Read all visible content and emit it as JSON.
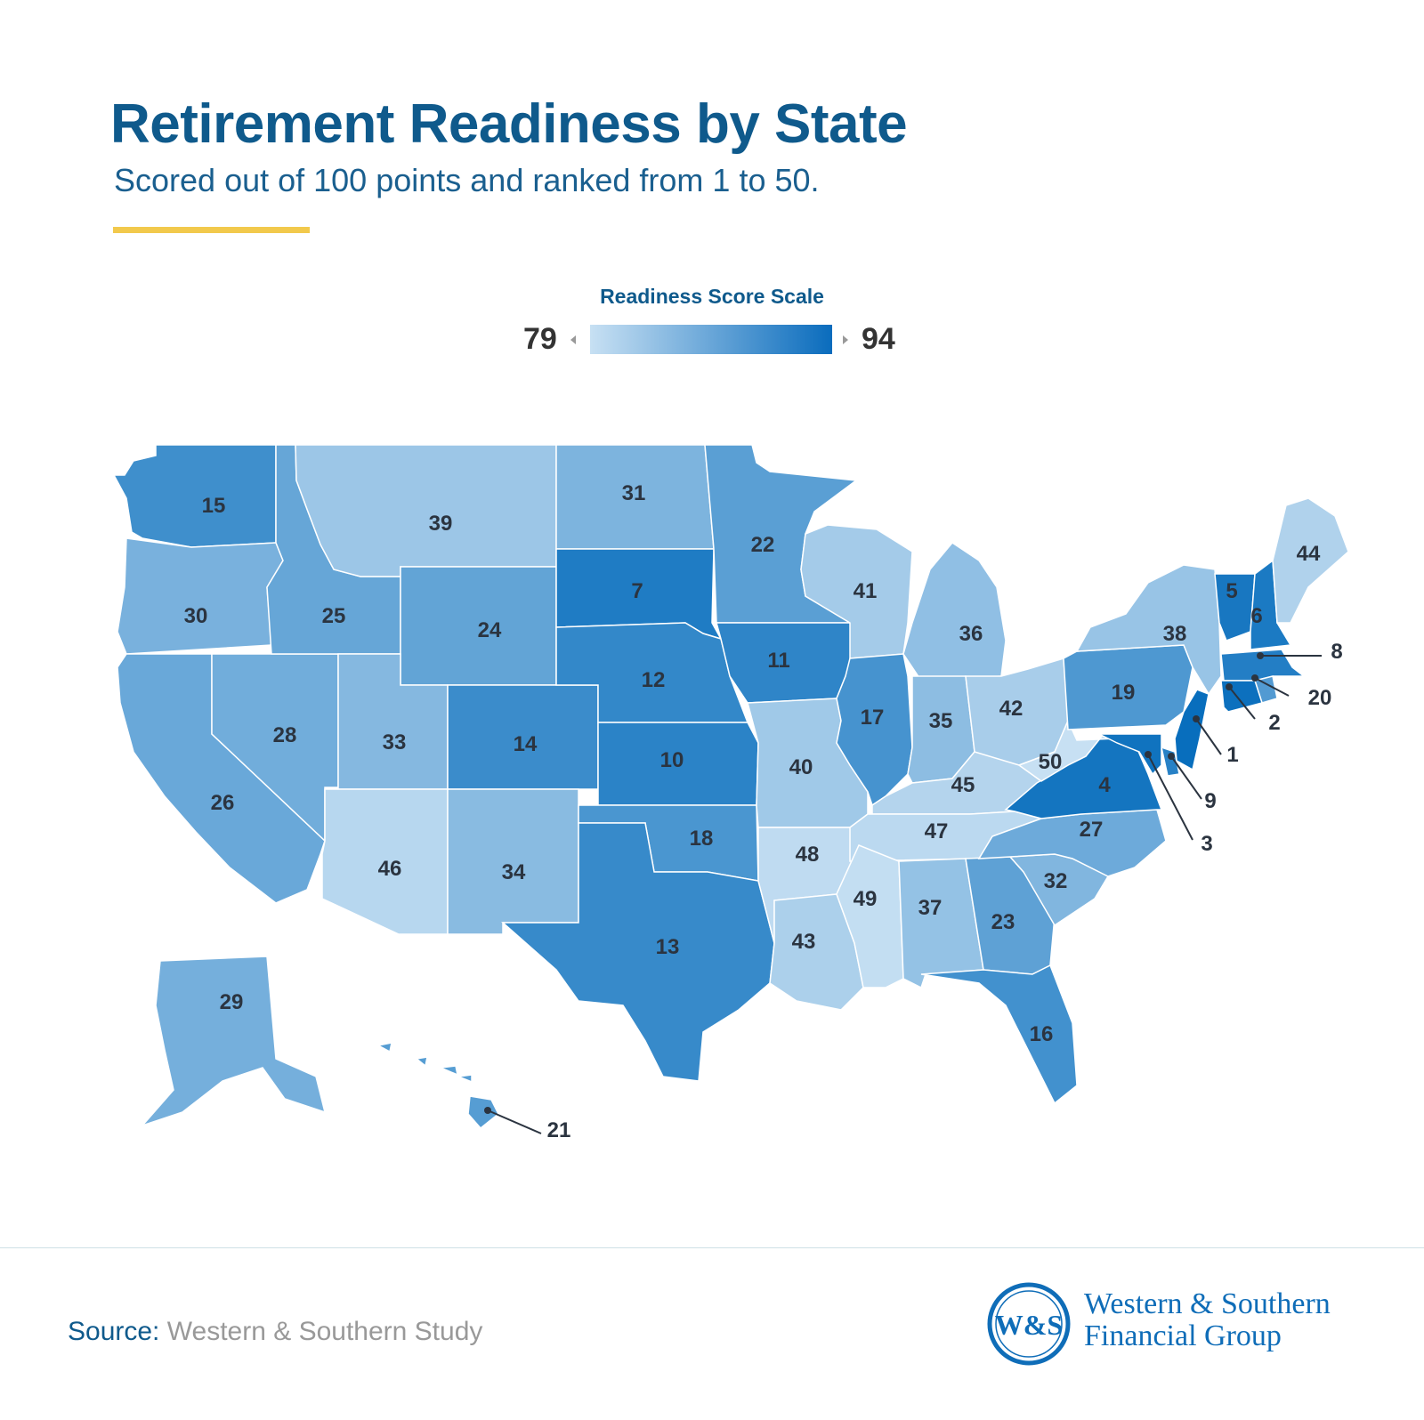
{
  "title": "Retirement Readiness by State",
  "subtitle": "Scored out of 100 points and ranked from 1 to 50.",
  "legend": {
    "title": "Readiness Score Scale",
    "min": "79",
    "max": "94",
    "color_low": "#c7e0f3",
    "color_high": "#0a6cbd"
  },
  "accent_color": "#f2c94c",
  "states": [
    {
      "state": "WA",
      "rank": "15"
    },
    {
      "state": "OR",
      "rank": "30"
    },
    {
      "state": "CA",
      "rank": "26"
    },
    {
      "state": "NV",
      "rank": "28"
    },
    {
      "state": "ID",
      "rank": "25"
    },
    {
      "state": "MT",
      "rank": "39"
    },
    {
      "state": "WY",
      "rank": "24"
    },
    {
      "state": "UT",
      "rank": "33"
    },
    {
      "state": "AZ",
      "rank": "46"
    },
    {
      "state": "CO",
      "rank": "14"
    },
    {
      "state": "NM",
      "rank": "34"
    },
    {
      "state": "ND",
      "rank": "31"
    },
    {
      "state": "SD",
      "rank": "7"
    },
    {
      "state": "NE",
      "rank": "12"
    },
    {
      "state": "KS",
      "rank": "10"
    },
    {
      "state": "OK",
      "rank": "18"
    },
    {
      "state": "TX",
      "rank": "13"
    },
    {
      "state": "MN",
      "rank": "22"
    },
    {
      "state": "IA",
      "rank": "11"
    },
    {
      "state": "MO",
      "rank": "40"
    },
    {
      "state": "AR",
      "rank": "48"
    },
    {
      "state": "LA",
      "rank": "43"
    },
    {
      "state": "WI",
      "rank": "41"
    },
    {
      "state": "IL",
      "rank": "17"
    },
    {
      "state": "MI",
      "rank": "36"
    },
    {
      "state": "IN",
      "rank": "35"
    },
    {
      "state": "OH",
      "rank": "42"
    },
    {
      "state": "KY",
      "rank": "45"
    },
    {
      "state": "TN",
      "rank": "47"
    },
    {
      "state": "MS",
      "rank": "49"
    },
    {
      "state": "AL",
      "rank": "37"
    },
    {
      "state": "GA",
      "rank": "23"
    },
    {
      "state": "FL",
      "rank": "16"
    },
    {
      "state": "SC",
      "rank": "32"
    },
    {
      "state": "NC",
      "rank": "27"
    },
    {
      "state": "VA",
      "rank": "4"
    },
    {
      "state": "WV",
      "rank": "50"
    },
    {
      "state": "PA",
      "rank": "19"
    },
    {
      "state": "NY",
      "rank": "38"
    },
    {
      "state": "VT",
      "rank": "5"
    },
    {
      "state": "NH",
      "rank": "6"
    },
    {
      "state": "ME",
      "rank": "44"
    },
    {
      "state": "MA",
      "rank": "8"
    },
    {
      "state": "RI",
      "rank": "20"
    },
    {
      "state": "CT",
      "rank": "2"
    },
    {
      "state": "NJ",
      "rank": "1"
    },
    {
      "state": "DE",
      "rank": "9"
    },
    {
      "state": "MD",
      "rank": "3"
    },
    {
      "state": "AK",
      "rank": "29"
    },
    {
      "state": "HI",
      "rank": "21"
    }
  ],
  "source": {
    "label": "Source:",
    "text": "Western & Southern Study"
  },
  "logo": {
    "mark": "W&S",
    "line1": "Western & Southern",
    "line2": "Financial Group"
  }
}
